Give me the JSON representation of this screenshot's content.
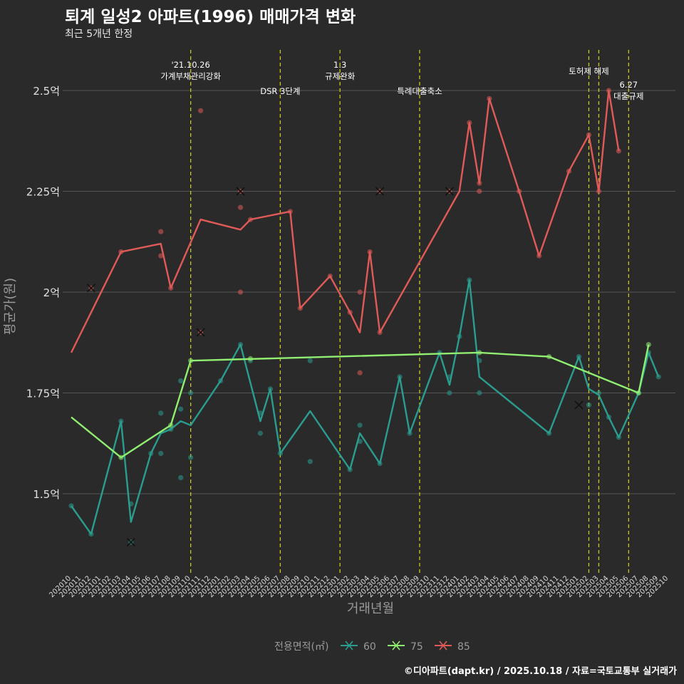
{
  "title": "퇴계 일성2 아파트(1996) 매매가격 변화",
  "subtitle": "최근 5개년 한정",
  "caption": "©디아파트(dapt.kr) / 2025.10.18 / 자료=국토교통부 실거래가",
  "colors": {
    "background": "#2b2a2b",
    "grid": "#555555",
    "vline": "#c8c820",
    "s60": "#2a9d8f",
    "s75": "#90ee70",
    "s85": "#e05a57"
  },
  "chart_data": {
    "type": "line",
    "title": "퇴계 일성2 아파트(1996) 매매가격 변화",
    "subtitle": "최근 5개년 한정",
    "xlabel": "거래년월",
    "ylabel": "평균가(원)",
    "ylim": [
      1.33,
      2.62
    ],
    "yticks": [
      1.5,
      1.75,
      2.0,
      2.25,
      2.5
    ],
    "ytick_labels": [
      "1.5억",
      "1.75억",
      "2억",
      "2.25억",
      "2.5억"
    ],
    "categories": [
      "202010",
      "202011",
      "202012",
      "202101",
      "202102",
      "202103",
      "202104",
      "202105",
      "202106",
      "202107",
      "202108",
      "202109",
      "202110",
      "202111",
      "202112",
      "202201",
      "202202",
      "202203",
      "202204",
      "202205",
      "202206",
      "202207",
      "202208",
      "202209",
      "202210",
      "202211",
      "202212",
      "202301",
      "202302",
      "202303",
      "202304",
      "202305",
      "202306",
      "202307",
      "202308",
      "202309",
      "202310",
      "202311",
      "202312",
      "202401",
      "202402",
      "202403",
      "202404",
      "202405",
      "202406",
      "202407",
      "202408",
      "202409",
      "202410",
      "202411",
      "202412",
      "202501",
      "202502",
      "202503",
      "202504",
      "202505",
      "202506",
      "202507",
      "202508",
      "202509",
      "202510"
    ],
    "legend_title": "전용면적(㎡)",
    "series": [
      {
        "name": "60",
        "line": [
          [
            0,
            1.47
          ],
          [
            2,
            1.4
          ],
          [
            5,
            1.68
          ],
          [
            6,
            1.43
          ],
          [
            8,
            1.6
          ],
          [
            9,
            1.65
          ],
          [
            10,
            1.66
          ],
          [
            11,
            1.68
          ],
          [
            12,
            1.67
          ],
          [
            15,
            1.78
          ],
          [
            17,
            1.87
          ],
          [
            19,
            1.68
          ],
          [
            20,
            1.76
          ],
          [
            21,
            1.6
          ],
          [
            24,
            1.705
          ],
          [
            28,
            1.56
          ],
          [
            29,
            1.65
          ],
          [
            31,
            1.575
          ],
          [
            33,
            1.79
          ],
          [
            34,
            1.65
          ],
          [
            37,
            1.85
          ],
          [
            38,
            1.77
          ],
          [
            39,
            1.89
          ],
          [
            40,
            2.03
          ],
          [
            41,
            1.79
          ],
          [
            48,
            1.65
          ],
          [
            51,
            1.84
          ],
          [
            52,
            1.76
          ],
          [
            53,
            1.745
          ],
          [
            54,
            1.69
          ],
          [
            55,
            1.64
          ],
          [
            57,
            1.75
          ],
          [
            58,
            1.85
          ],
          [
            59,
            1.79
          ]
        ],
        "points": [
          [
            0,
            1.47
          ],
          [
            2,
            1.4
          ],
          [
            5,
            1.68
          ],
          [
            6,
            1.475
          ],
          [
            6,
            1.38
          ],
          [
            8,
            1.6
          ],
          [
            9,
            1.7
          ],
          [
            9,
            1.6
          ],
          [
            10,
            1.66
          ],
          [
            11,
            1.78
          ],
          [
            11,
            1.71
          ],
          [
            11,
            1.54
          ],
          [
            12,
            1.75
          ],
          [
            12,
            1.59
          ],
          [
            15,
            1.78
          ],
          [
            17,
            1.87
          ],
          [
            18,
            1.83
          ],
          [
            19,
            1.7
          ],
          [
            19,
            1.65
          ],
          [
            20,
            1.76
          ],
          [
            21,
            1.6
          ],
          [
            24,
            1.83
          ],
          [
            24,
            1.58
          ],
          [
            28,
            1.56
          ],
          [
            29,
            1.67
          ],
          [
            29,
            1.63
          ],
          [
            31,
            1.575
          ],
          [
            33,
            1.79
          ],
          [
            34,
            1.65
          ],
          [
            37,
            1.85
          ],
          [
            38,
            1.79
          ],
          [
            38,
            1.75
          ],
          [
            39,
            1.89
          ],
          [
            40,
            2.03
          ],
          [
            41,
            1.83
          ],
          [
            41,
            1.75
          ],
          [
            48,
            1.65
          ],
          [
            51,
            1.84
          ],
          [
            52,
            1.72
          ],
          [
            53,
            1.75
          ],
          [
            54,
            1.69
          ],
          [
            55,
            1.64
          ],
          [
            57,
            1.75
          ],
          [
            58,
            1.85
          ],
          [
            59,
            1.79
          ]
        ],
        "crosses": [
          [
            6,
            1.38
          ],
          [
            51,
            1.72
          ]
        ]
      },
      {
        "name": "75",
        "line": [
          [
            0,
            1.69
          ],
          [
            5,
            1.59
          ],
          [
            10,
            1.67
          ],
          [
            12,
            1.83
          ],
          [
            41,
            1.85
          ],
          [
            48,
            1.84
          ],
          [
            57,
            1.75
          ],
          [
            58,
            1.87
          ]
        ],
        "points": [
          [
            5,
            1.59
          ],
          [
            10,
            1.67
          ],
          [
            12,
            1.83
          ],
          [
            18,
            1.835
          ],
          [
            41,
            1.85
          ],
          [
            48,
            1.84
          ],
          [
            57,
            1.75
          ],
          [
            58,
            1.87
          ]
        ],
        "crosses": []
      },
      {
        "name": "85",
        "line": [
          [
            0,
            1.85
          ],
          [
            5,
            2.1
          ],
          [
            9,
            2.12
          ],
          [
            10,
            2.01
          ],
          [
            13,
            2.18
          ],
          [
            17,
            2.155
          ],
          [
            18,
            2.18
          ],
          [
            22,
            2.2
          ],
          [
            23,
            1.96
          ],
          [
            26,
            2.04
          ],
          [
            28,
            1.95
          ],
          [
            29,
            1.9
          ],
          [
            30,
            2.1
          ],
          [
            31,
            1.9
          ],
          [
            39,
            2.25
          ],
          [
            40,
            2.42
          ],
          [
            41,
            2.27
          ],
          [
            42,
            2.48
          ],
          [
            45,
            2.25
          ],
          [
            47,
            2.09
          ],
          [
            50,
            2.3
          ],
          [
            52,
            2.39
          ],
          [
            53,
            2.25
          ],
          [
            54,
            2.5
          ],
          [
            55,
            2.35
          ]
        ],
        "points": [
          [
            2,
            2.01
          ],
          [
            5,
            2.1
          ],
          [
            9,
            2.15
          ],
          [
            9,
            2.09
          ],
          [
            10,
            2.01
          ],
          [
            13,
            2.45
          ],
          [
            13,
            1.9
          ],
          [
            17,
            2.25
          ],
          [
            17,
            2.21
          ],
          [
            17,
            2.0
          ],
          [
            18,
            2.18
          ],
          [
            22,
            2.2
          ],
          [
            23,
            1.96
          ],
          [
            26,
            2.04
          ],
          [
            28,
            1.95
          ],
          [
            29,
            2.0
          ],
          [
            29,
            1.8
          ],
          [
            30,
            2.1
          ],
          [
            31,
            2.25
          ],
          [
            31,
            1.9
          ],
          [
            38,
            2.25
          ],
          [
            40,
            2.42
          ],
          [
            41,
            2.27
          ],
          [
            41,
            2.25
          ],
          [
            42,
            2.48
          ],
          [
            45,
            2.25
          ],
          [
            47,
            2.09
          ],
          [
            50,
            2.3
          ],
          [
            52,
            2.39
          ],
          [
            53,
            2.25
          ],
          [
            54,
            2.5
          ],
          [
            55,
            2.35
          ]
        ],
        "crosses": [
          [
            2,
            2.01
          ],
          [
            13,
            1.9
          ],
          [
            17,
            2.25
          ],
          [
            31,
            2.25
          ],
          [
            38,
            2.25
          ]
        ]
      }
    ],
    "events": [
      {
        "x": 12,
        "lines": [
          "'21.10.26",
          "가계부채관리강화"
        ],
        "row": 0
      },
      {
        "x": 21,
        "lines": [
          "DSR 3단계"
        ],
        "row": 1
      },
      {
        "x": 27,
        "lines": [
          "1.3",
          "규제완화"
        ],
        "row": 0
      },
      {
        "x": 35,
        "lines": [
          "특례대출축소"
        ],
        "row": 1
      },
      {
        "x": 52,
        "lines": [
          "토허제 해제"
        ],
        "row": 0
      },
      {
        "x": 53,
        "lines": [],
        "row": 0
      },
      {
        "x": 56,
        "lines": [
          "6.27",
          "대출규제"
        ],
        "row": 1
      }
    ]
  }
}
